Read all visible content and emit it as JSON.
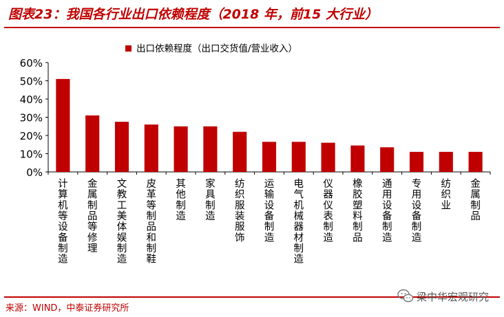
{
  "header": {
    "title": "图表23：我国各行业出口依赖程度（2018 年，前15 大行业）"
  },
  "footer": {
    "source": "来源：WIND，中泰证券研究所",
    "watermark": "梁中华宏观研究",
    "watermark_icon": "wechat-icon"
  },
  "chart_data": {
    "type": "bar",
    "title": "",
    "legend": [
      "出口依赖程度（出口交货值/营业收入）"
    ],
    "legend_position": "top-center",
    "bar_color": "#c00000",
    "categories": [
      "计算机等设备制造",
      "金属制品等修理",
      "文教工美体娱制造",
      "皮革等制品和制鞋",
      "其他制造",
      "家具制造",
      "纺织服装服饰",
      "运输设备制造",
      "电气机械器材制造",
      "仪器仪表制造",
      "橡胶塑料制品",
      "通用设备制造",
      "专用设备制造",
      "纺织业",
      "金属制品"
    ],
    "series": [
      {
        "name": "出口依赖程度（出口交货值/营业收入）",
        "values": [
          51,
          31,
          27.5,
          26,
          25,
          25,
          22,
          16.5,
          16.5,
          16,
          14.5,
          13.5,
          11,
          11,
          11
        ]
      }
    ],
    "ylim": [
      0,
      60
    ],
    "yticks": [
      "0%",
      "10%",
      "20%",
      "30%",
      "40%",
      "50%",
      "60%"
    ],
    "xlabel": "",
    "ylabel": "",
    "grid": false
  }
}
